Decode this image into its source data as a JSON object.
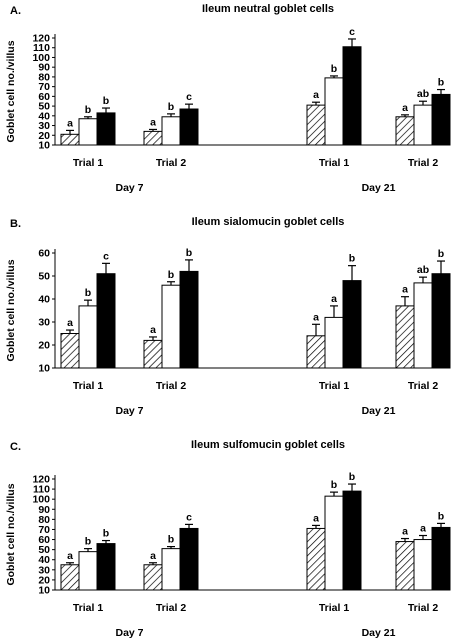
{
  "chart_data": [
    {
      "type": "bar",
      "panel_label": "A.",
      "title": "Ileum neutral goblet cells",
      "ylabel": "Goblet cell no./villus",
      "ylim": [
        10,
        120
      ],
      "yticks": [
        10,
        20,
        30,
        40,
        50,
        60,
        70,
        80,
        90,
        100,
        110,
        120
      ],
      "categories": [
        "Trial 1",
        "Trial 2",
        "Trial 1",
        "Trial 2"
      ],
      "groups": [
        {
          "label": "Day 7",
          "categories": [
            0,
            1
          ]
        },
        {
          "label": "Day 21",
          "categories": [
            2,
            3
          ]
        }
      ],
      "series": [
        {
          "fill": "hatched",
          "values": [
            21,
            24,
            51,
            39
          ],
          "errors": [
            4,
            2,
            3,
            2
          ],
          "labels": [
            "a",
            "a",
            "a",
            "a"
          ]
        },
        {
          "fill": "white",
          "values": [
            37,
            39,
            79,
            51
          ],
          "errors": [
            2,
            3,
            2,
            4
          ],
          "labels": [
            "b",
            "b",
            "b",
            "ab"
          ]
        },
        {
          "fill": "black",
          "values": [
            43,
            47,
            111,
            62
          ],
          "errors": [
            5,
            5,
            8,
            5
          ],
          "labels": [
            "b",
            "c",
            "c",
            "b"
          ]
        }
      ]
    },
    {
      "type": "bar",
      "panel_label": "B.",
      "title": "Ileum sialomucin goblet cells",
      "ylabel": "Goblet cell no./villus",
      "ylim": [
        10,
        60
      ],
      "yticks": [
        10,
        20,
        30,
        40,
        50,
        60
      ],
      "categories": [
        "Trial 1",
        "Trial 2",
        "Trial 1",
        "Trial 2"
      ],
      "groups": [
        {
          "label": "Day 7",
          "categories": [
            0,
            1
          ]
        },
        {
          "label": "Day 21",
          "categories": [
            2,
            3
          ]
        }
      ],
      "series": [
        {
          "fill": "hatched",
          "values": [
            25,
            22,
            24,
            37
          ],
          "errors": [
            1.5,
            1.5,
            5,
            4
          ],
          "labels": [
            "a",
            "a",
            "a",
            "a"
          ]
        },
        {
          "fill": "white",
          "values": [
            37,
            46,
            32,
            47
          ],
          "errors": [
            2.5,
            1.5,
            5,
            2.5
          ],
          "labels": [
            "b",
            "b",
            "a",
            "ab"
          ]
        },
        {
          "fill": "black",
          "values": [
            51,
            52,
            48,
            51
          ],
          "errors": [
            4.5,
            5,
            6.5,
            5.5
          ],
          "labels": [
            "c",
            "b",
            "b",
            "b"
          ]
        }
      ]
    },
    {
      "type": "bar",
      "panel_label": "C.",
      "title": "Ileum sulfomucin goblet cells",
      "ylabel": "Goblet cell no./villus",
      "ylim": [
        10,
        120
      ],
      "yticks": [
        10,
        20,
        30,
        40,
        50,
        60,
        70,
        80,
        90,
        100,
        110,
        120
      ],
      "categories": [
        "Trial 1",
        "Trial 2",
        "Trial 1",
        "Trial 2"
      ],
      "groups": [
        {
          "label": "Day 7",
          "categories": [
            0,
            1
          ]
        },
        {
          "label": "Day 21",
          "categories": [
            2,
            3
          ]
        }
      ],
      "series": [
        {
          "fill": "hatched",
          "values": [
            35,
            35,
            71,
            58
          ],
          "errors": [
            2,
            2,
            3,
            3
          ],
          "labels": [
            "a",
            "a",
            "a",
            "a"
          ]
        },
        {
          "fill": "white",
          "values": [
            48,
            51,
            103,
            60
          ],
          "errors": [
            3,
            2,
            4,
            4
          ],
          "labels": [
            "b",
            "b",
            "b",
            "a"
          ]
        },
        {
          "fill": "black",
          "values": [
            56,
            71,
            108,
            72
          ],
          "errors": [
            3,
            4,
            7,
            4
          ],
          "labels": [
            "b",
            "c",
            "b",
            "b"
          ]
        }
      ]
    }
  ]
}
